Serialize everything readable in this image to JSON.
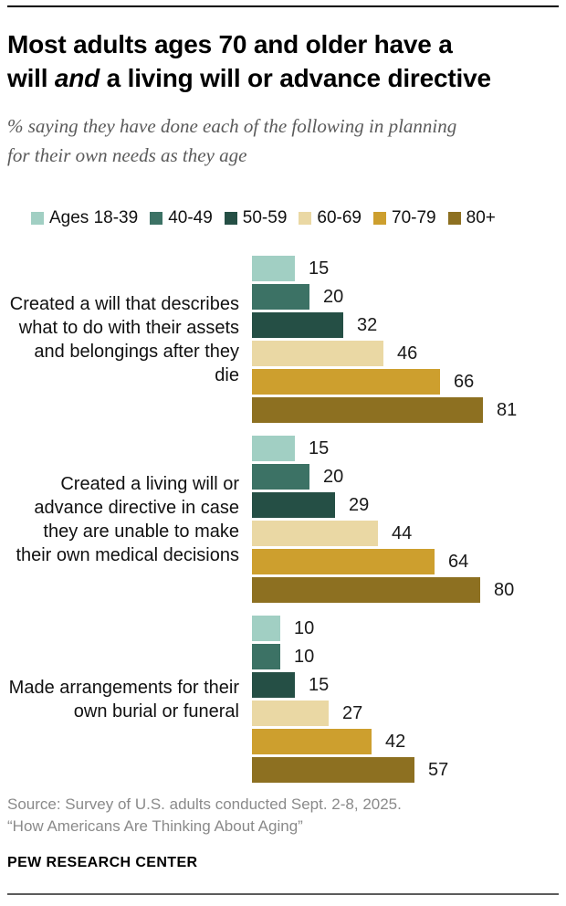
{
  "header": {
    "title_line1": "Most adults ages 70 and older have a",
    "title_line2_pre": "will ",
    "title_line2_italic": "and",
    "title_line2_post": " a living will or advance directive",
    "subtitle": "% saying they have done each of the following in planning for their own needs as they age"
  },
  "chart_data": {
    "type": "bar",
    "orientation": "horizontal",
    "value_unit": "%",
    "xlim": [
      0,
      100
    ],
    "grid": false,
    "legend_position": "top",
    "series_labels": [
      "Ages 18-39",
      "40-49",
      "50-59",
      "60-69",
      "70-79",
      "80+"
    ],
    "series_colors": [
      "#A1CFC3",
      "#3C7265",
      "#254F45",
      "#EAD8A4",
      "#CD9F2E",
      "#8D7021"
    ],
    "categories": [
      "Created a will that describes what to do with their assets and belongings after they die",
      "Created a living will or advance directive in case they are unable to make their own medical decisions",
      "Made arrangements for their own burial or funeral"
    ],
    "series_by_category": [
      [
        15,
        20,
        32,
        46,
        66,
        81
      ],
      [
        15,
        20,
        29,
        44,
        64,
        80
      ],
      [
        10,
        10,
        15,
        27,
        42,
        57
      ]
    ]
  },
  "footer": {
    "source_line1": "Source: Survey of U.S. adults conducted Sept. 2-8, 2025.",
    "source_line2": "“How Americans Are Thinking About Aging”",
    "brand": "PEW RESEARCH CENTER"
  }
}
